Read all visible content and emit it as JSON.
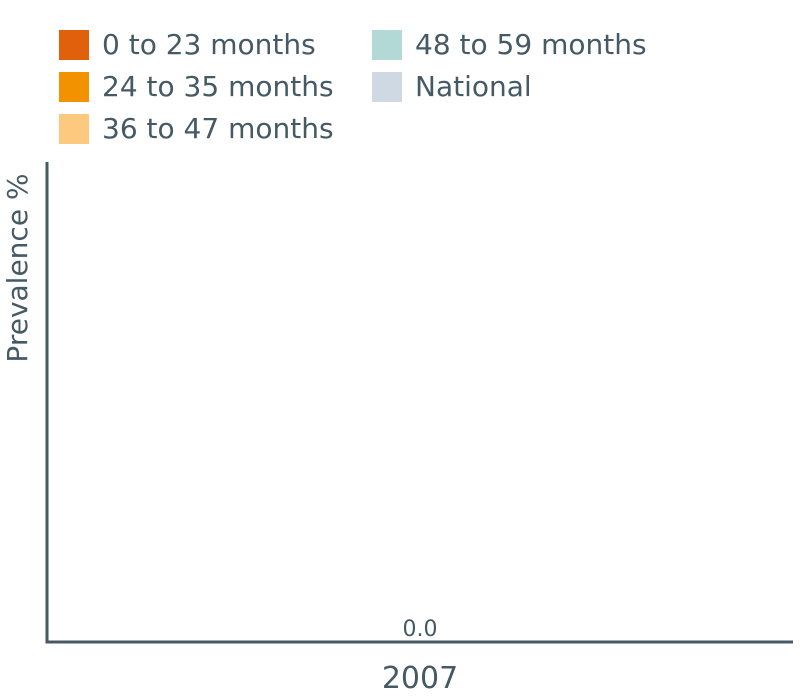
{
  "chart_data": {
    "type": "bar",
    "title": "",
    "ylabel": "Prevalence %",
    "xlabel": "",
    "categories": [
      "2007"
    ],
    "series": [
      {
        "name": "0 to 23 months",
        "color": "#e0600c",
        "values": [
          null
        ]
      },
      {
        "name": "24 to 35 months",
        "color": "#f39200",
        "values": [
          null
        ]
      },
      {
        "name": "36 to 47 months",
        "color": "#fcc97e",
        "values": [
          null
        ]
      },
      {
        "name": "48 to 59 months",
        "color": "#b3d9d6",
        "values": [
          null
        ]
      },
      {
        "name": "National",
        "color": "#cfd9e3",
        "values": [
          0.0
        ]
      }
    ],
    "data_labels": [
      {
        "category": "2007",
        "series": "National",
        "text": "0.0"
      }
    ],
    "ylim": [
      0,
      100
    ],
    "grid": false,
    "legend_position": "top-left",
    "axis_color": "#455a64"
  }
}
